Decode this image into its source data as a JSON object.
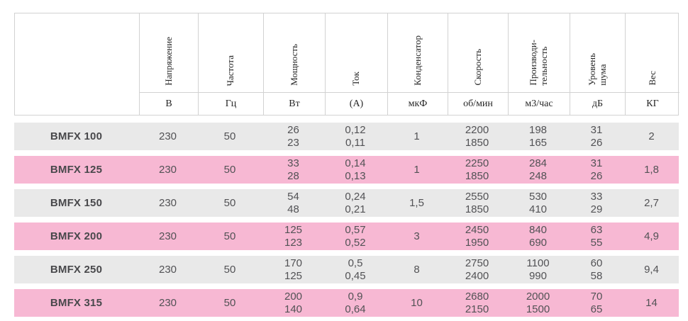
{
  "table": {
    "columns": [
      {
        "label": "",
        "unit": ""
      },
      {
        "label": "Напряжение",
        "unit": "В"
      },
      {
        "label": "Частота",
        "unit": "Гц"
      },
      {
        "label": "Мощность",
        "unit": "Вт"
      },
      {
        "label": "Ток",
        "unit": "(А)"
      },
      {
        "label": "Конденсатор",
        "unit": "мкФ"
      },
      {
        "label": "Скорость",
        "unit": "об/мин"
      },
      {
        "label": "Производи-\nтельность",
        "unit": "м3/час"
      },
      {
        "label": "Уровень\nшума",
        "unit": "дБ"
      },
      {
        "label": "Вес",
        "unit": "КГ"
      }
    ],
    "rows": [
      {
        "model": "BMFX 100",
        "values": [
          "230",
          "50",
          "26\n23",
          "0,12\n0,11",
          "1",
          "2200\n1850",
          "198\n165",
          "31\n26",
          "2"
        ]
      },
      {
        "model": "BMFX 125",
        "values": [
          "230",
          "50",
          "33\n28",
          "0,14\n0,13",
          "1",
          "2250\n1850",
          "284\n248",
          "31\n26",
          "1,8"
        ]
      },
      {
        "model": "BMFX 150",
        "values": [
          "230",
          "50",
          "54\n48",
          "0,24\n0,21",
          "1,5",
          "2550\n1850",
          "530\n410",
          "33\n29",
          "2,7"
        ]
      },
      {
        "model": "BMFX 200",
        "values": [
          "230",
          "50",
          "125\n123",
          "0,57\n0,52",
          "3",
          "2450\n1950",
          "840\n690",
          "63\n55",
          "4,9"
        ]
      },
      {
        "model": "BMFX 250",
        "values": [
          "230",
          "50",
          "170\n125",
          "0,5\n0,45",
          "8",
          "2750\n2400",
          "1100\n990",
          "60\n58",
          "9,4"
        ]
      },
      {
        "model": "BMFX 315",
        "values": [
          "230",
          "50",
          "200\n140",
          "0,9\n0,64",
          "10",
          "2680\n2150",
          "2000\n1500",
          "70\n65",
          "14"
        ]
      }
    ],
    "colors": {
      "row_gray": "#e9e9e9",
      "row_pink": "#f7b8d3",
      "border": "#d2d2d2",
      "text": "#525255",
      "header_text": "#262626"
    }
  }
}
